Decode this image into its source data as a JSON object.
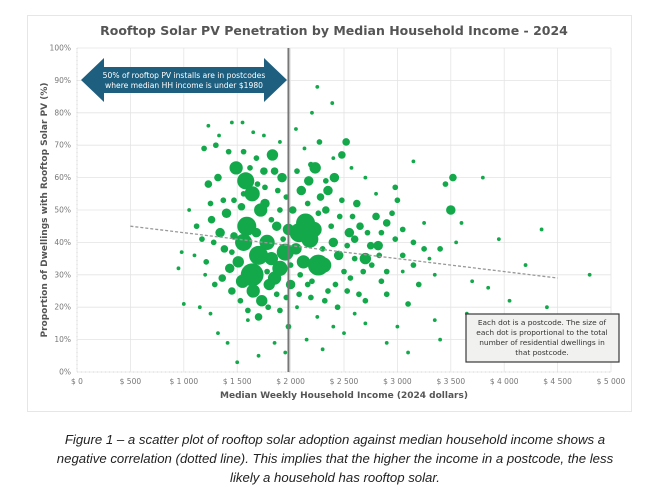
{
  "chart_data": {
    "type": "scatter",
    "title": "Rooftop Solar PV Penetration by Median Household Income - 2024",
    "xlabel": "Median Weekly Household Income (2024 dollars)",
    "ylabel": "Proportion of Dwellings with Rooftop Solar PV (%)",
    "xlim": [
      0,
      5000
    ],
    "ylim": [
      0,
      100
    ],
    "x_ticks": [
      "$ 0",
      "$ 500",
      "$ 1 000",
      "$ 1 500",
      "$ 2 000",
      "$ 2 500",
      "$ 3 000",
      "$ 3 500",
      "$ 4 000",
      "$ 4 500",
      "$ 5 000"
    ],
    "x_tick_values": [
      0,
      500,
      1000,
      1500,
      2000,
      2500,
      3000,
      3500,
      4000,
      4500,
      5000
    ],
    "y_ticks": [
      "0%",
      "10%",
      "20%",
      "30%",
      "40%",
      "50%",
      "60%",
      "70%",
      "80%",
      "90%",
      "100%"
    ],
    "y_tick_values": [
      0,
      10,
      20,
      30,
      40,
      50,
      60,
      70,
      80,
      90,
      100
    ],
    "grid": true,
    "point_color": "#13A94B",
    "trendline": {
      "style": "dotted",
      "x": [
        500,
        4500
      ],
      "y": [
        45,
        29
      ],
      "color": "#999999"
    },
    "median_line": {
      "x": 1980,
      "color": "#777777"
    },
    "annotation_arrow": {
      "text_lines": [
        "50% of rooftop PV installs are in postcodes",
        "where median HH income is under $1980"
      ],
      "color": "#1E5F80"
    },
    "annotation_box": {
      "text_lines": [
        "Each dot is a postcode.  The size of",
        "each dot is proportional to the total",
        "number of residential dwellings in",
        "that postcode."
      ]
    },
    "series": [
      {
        "name": "Postcodes",
        "points": [
          [
            1490,
            63,
            7
          ],
          [
            1580,
            59,
            9
          ],
          [
            1640,
            55,
            8
          ],
          [
            1720,
            50,
            7
          ],
          [
            1760,
            52,
            5
          ],
          [
            1830,
            67,
            6
          ],
          [
            1420,
            68,
            3
          ],
          [
            1850,
            62,
            4
          ],
          [
            1920,
            60,
            5
          ],
          [
            1590,
            45,
            10
          ],
          [
            1560,
            40,
            9
          ],
          [
            1700,
            36,
            10
          ],
          [
            1780,
            40,
            8
          ],
          [
            1820,
            35,
            7
          ],
          [
            1640,
            30,
            12
          ],
          [
            1510,
            34,
            6
          ],
          [
            1550,
            28,
            7
          ],
          [
            1650,
            25,
            7
          ],
          [
            1730,
            22,
            6
          ],
          [
            1800,
            27,
            6
          ],
          [
            1850,
            29,
            7
          ],
          [
            1900,
            32,
            8
          ],
          [
            1950,
            37,
            9
          ],
          [
            1980,
            44,
            6
          ],
          [
            2080,
            43,
            10
          ],
          [
            2140,
            46,
            10
          ],
          [
            2180,
            41,
            9
          ],
          [
            2220,
            44,
            8
          ],
          [
            2260,
            33,
            11
          ],
          [
            2310,
            33,
            8
          ],
          [
            2120,
            34,
            7
          ],
          [
            2050,
            38,
            6
          ],
          [
            2000,
            27,
            5
          ],
          [
            2020,
            50,
            4
          ],
          [
            2100,
            56,
            5
          ],
          [
            2170,
            59,
            5
          ],
          [
            2230,
            63,
            6
          ],
          [
            2280,
            54,
            4
          ],
          [
            2350,
            56,
            5
          ],
          [
            2410,
            60,
            5
          ],
          [
            2480,
            67,
            4
          ],
          [
            2520,
            71,
            4
          ],
          [
            2620,
            52,
            4
          ],
          [
            2400,
            40,
            5
          ],
          [
            2450,
            36,
            5
          ],
          [
            2550,
            43,
            5
          ],
          [
            2600,
            41,
            4
          ],
          [
            2650,
            45,
            4
          ],
          [
            2700,
            35,
            6
          ],
          [
            2750,
            39,
            4
          ],
          [
            2820,
            39,
            5
          ],
          [
            2900,
            46,
            4
          ],
          [
            2980,
            57,
            3
          ],
          [
            2330,
            50,
            4
          ],
          [
            2270,
            71,
            3
          ],
          [
            3000,
            53,
            3
          ],
          [
            3500,
            50,
            5
          ],
          [
            3450,
            58,
            3
          ],
          [
            3520,
            60,
            4
          ],
          [
            3800,
            60,
            2
          ],
          [
            3400,
            38,
            3
          ],
          [
            3300,
            35,
            2
          ],
          [
            3150,
            40,
            3
          ],
          [
            3050,
            44,
            3
          ],
          [
            2950,
            49,
            3
          ],
          [
            2800,
            48,
            4
          ],
          [
            1980,
            14,
            3
          ],
          [
            2060,
            20,
            2
          ],
          [
            1400,
            49,
            5
          ],
          [
            1320,
            60,
            4
          ],
          [
            1300,
            70,
            3
          ],
          [
            1190,
            69,
            3
          ],
          [
            1230,
            58,
            4
          ],
          [
            1260,
            47,
            4
          ],
          [
            1340,
            43,
            5
          ],
          [
            1380,
            38,
            4
          ],
          [
            1430,
            32,
            5
          ],
          [
            1450,
            25,
            4
          ],
          [
            1360,
            29,
            4
          ],
          [
            1290,
            27,
            3
          ],
          [
            1210,
            34,
            3
          ],
          [
            1170,
            41,
            3
          ],
          [
            1120,
            45,
            3
          ],
          [
            1680,
            43,
            5
          ],
          [
            1620,
            46,
            4
          ],
          [
            1470,
            42,
            4
          ],
          [
            1540,
            51,
            4
          ],
          [
            1750,
            62,
            4
          ],
          [
            1870,
            45,
            5
          ],
          [
            1700,
            17,
            4
          ],
          [
            1790,
            20,
            3
          ],
          [
            1900,
            19,
            3
          ],
          [
            2200,
            28,
            3
          ],
          [
            2350,
            25,
            3
          ],
          [
            2420,
            27,
            3
          ],
          [
            2500,
            31,
            3
          ],
          [
            2560,
            29,
            3
          ],
          [
            2640,
            24,
            3
          ],
          [
            2700,
            22,
            3
          ],
          [
            2850,
            28,
            3
          ],
          [
            2900,
            24,
            3
          ],
          [
            3200,
            27,
            3
          ],
          [
            3100,
            21,
            3
          ],
          [
            3350,
            30,
            2
          ],
          [
            2250,
            17,
            2
          ],
          [
            2600,
            18,
            2
          ],
          [
            2700,
            15,
            2
          ],
          [
            2250,
            88,
            2
          ],
          [
            2200,
            80,
            2
          ],
          [
            2390,
            83,
            2
          ],
          [
            1410,
            9,
            2
          ],
          [
            1320,
            12,
            2
          ],
          [
            1200,
            30,
            2
          ],
          [
            1100,
            36,
            2
          ],
          [
            1050,
            50,
            2
          ],
          [
            980,
            37,
            2
          ],
          [
            950,
            32,
            2
          ],
          [
            1000,
            21,
            2
          ],
          [
            1150,
            20,
            2
          ],
          [
            1250,
            18,
            2
          ],
          [
            1600,
            16,
            2
          ],
          [
            1700,
            5,
            2
          ],
          [
            1500,
            3,
            2
          ],
          [
            2400,
            14,
            2
          ],
          [
            2500,
            12,
            2
          ],
          [
            2900,
            9,
            2
          ],
          [
            3100,
            6,
            2
          ],
          [
            3400,
            10,
            2
          ],
          [
            3650,
            18,
            2
          ],
          [
            3900,
            15,
            2
          ],
          [
            4050,
            22,
            2
          ],
          [
            4150,
            12,
            2
          ],
          [
            4400,
            20,
            2
          ],
          [
            3700,
            28,
            2
          ],
          [
            3850,
            26,
            2
          ],
          [
            4200,
            33,
            2
          ],
          [
            4350,
            44,
            2
          ],
          [
            3950,
            41,
            2
          ],
          [
            3600,
            46,
            2
          ],
          [
            3550,
            40,
            2
          ],
          [
            3250,
            46,
            2
          ],
          [
            3050,
            31,
            2
          ],
          [
            2150,
            10,
            2
          ],
          [
            2300,
            7,
            2
          ],
          [
            1850,
            9,
            2
          ],
          [
            1950,
            6,
            2
          ],
          [
            1230,
            76,
            2
          ],
          [
            1330,
            73,
            2
          ],
          [
            1450,
            77,
            2
          ],
          [
            1550,
            77,
            2
          ],
          [
            1650,
            74,
            2
          ],
          [
            1750,
            73,
            2
          ],
          [
            1900,
            71,
            2
          ],
          [
            2050,
            75,
            2
          ],
          [
            2130,
            69,
            2
          ],
          [
            2400,
            66,
            2
          ],
          [
            2570,
            63,
            2
          ],
          [
            2700,
            60,
            2
          ],
          [
            2800,
            55,
            2
          ],
          [
            3150,
            65,
            2
          ],
          [
            4800,
            30,
            2
          ],
          [
            4900,
            9,
            2
          ],
          [
            4650,
            5,
            2
          ],
          [
            3350,
            16,
            2
          ],
          [
            3000,
            14,
            2
          ],
          [
            1560,
            55,
            3
          ],
          [
            1470,
            53,
            3
          ],
          [
            1620,
            63,
            3
          ],
          [
            1690,
            58,
            3
          ],
          [
            1880,
            56,
            3
          ],
          [
            1960,
            54,
            3
          ],
          [
            1820,
            47,
            3
          ],
          [
            1930,
            41,
            3
          ],
          [
            2000,
            33,
            3
          ],
          [
            2090,
            30,
            3
          ],
          [
            2160,
            27,
            3
          ],
          [
            2300,
            38,
            3
          ],
          [
            2380,
            45,
            3
          ],
          [
            2460,
            48,
            3
          ],
          [
            2530,
            39,
            3
          ],
          [
            2680,
            31,
            3
          ],
          [
            2760,
            33,
            3
          ],
          [
            2830,
            36,
            3
          ],
          [
            2600,
            35,
            3
          ],
          [
            1450,
            37,
            3
          ],
          [
            1370,
            53,
            3
          ],
          [
            1280,
            40,
            3
          ],
          [
            1250,
            52,
            3
          ],
          [
            1530,
            22,
            3
          ],
          [
            1600,
            19,
            3
          ],
          [
            1780,
            31,
            3
          ],
          [
            1870,
            24,
            3
          ],
          [
            1960,
            23,
            3
          ],
          [
            2080,
            24,
            3
          ],
          [
            2190,
            23,
            3
          ],
          [
            2320,
            22,
            3
          ],
          [
            2440,
            20,
            3
          ],
          [
            2530,
            25,
            3
          ],
          [
            2900,
            31,
            3
          ],
          [
            3050,
            36,
            3
          ],
          [
            3150,
            33,
            3
          ],
          [
            3250,
            38,
            3
          ],
          [
            2980,
            41,
            3
          ],
          [
            2850,
            43,
            3
          ],
          [
            2720,
            43,
            3
          ],
          [
            2580,
            48,
            3
          ],
          [
            2480,
            53,
            3
          ],
          [
            2330,
            59,
            3
          ],
          [
            2190,
            64,
            3
          ],
          [
            2060,
            62,
            3
          ],
          [
            2160,
            52,
            3
          ],
          [
            2260,
            49,
            3
          ],
          [
            1560,
            68,
            3
          ],
          [
            1680,
            66,
            3
          ],
          [
            1760,
            57,
            3
          ],
          [
            1900,
            50,
            3
          ]
        ]
      }
    ]
  },
  "caption": {
    "lines": [
      "Figure 1 – a scatter plot of rooftop solar adoption against median household income shows a",
      "negative correlation (dotted line).  This implies that the higher the income in a postcode, the less",
      "likely a household has rooftop solar."
    ]
  }
}
